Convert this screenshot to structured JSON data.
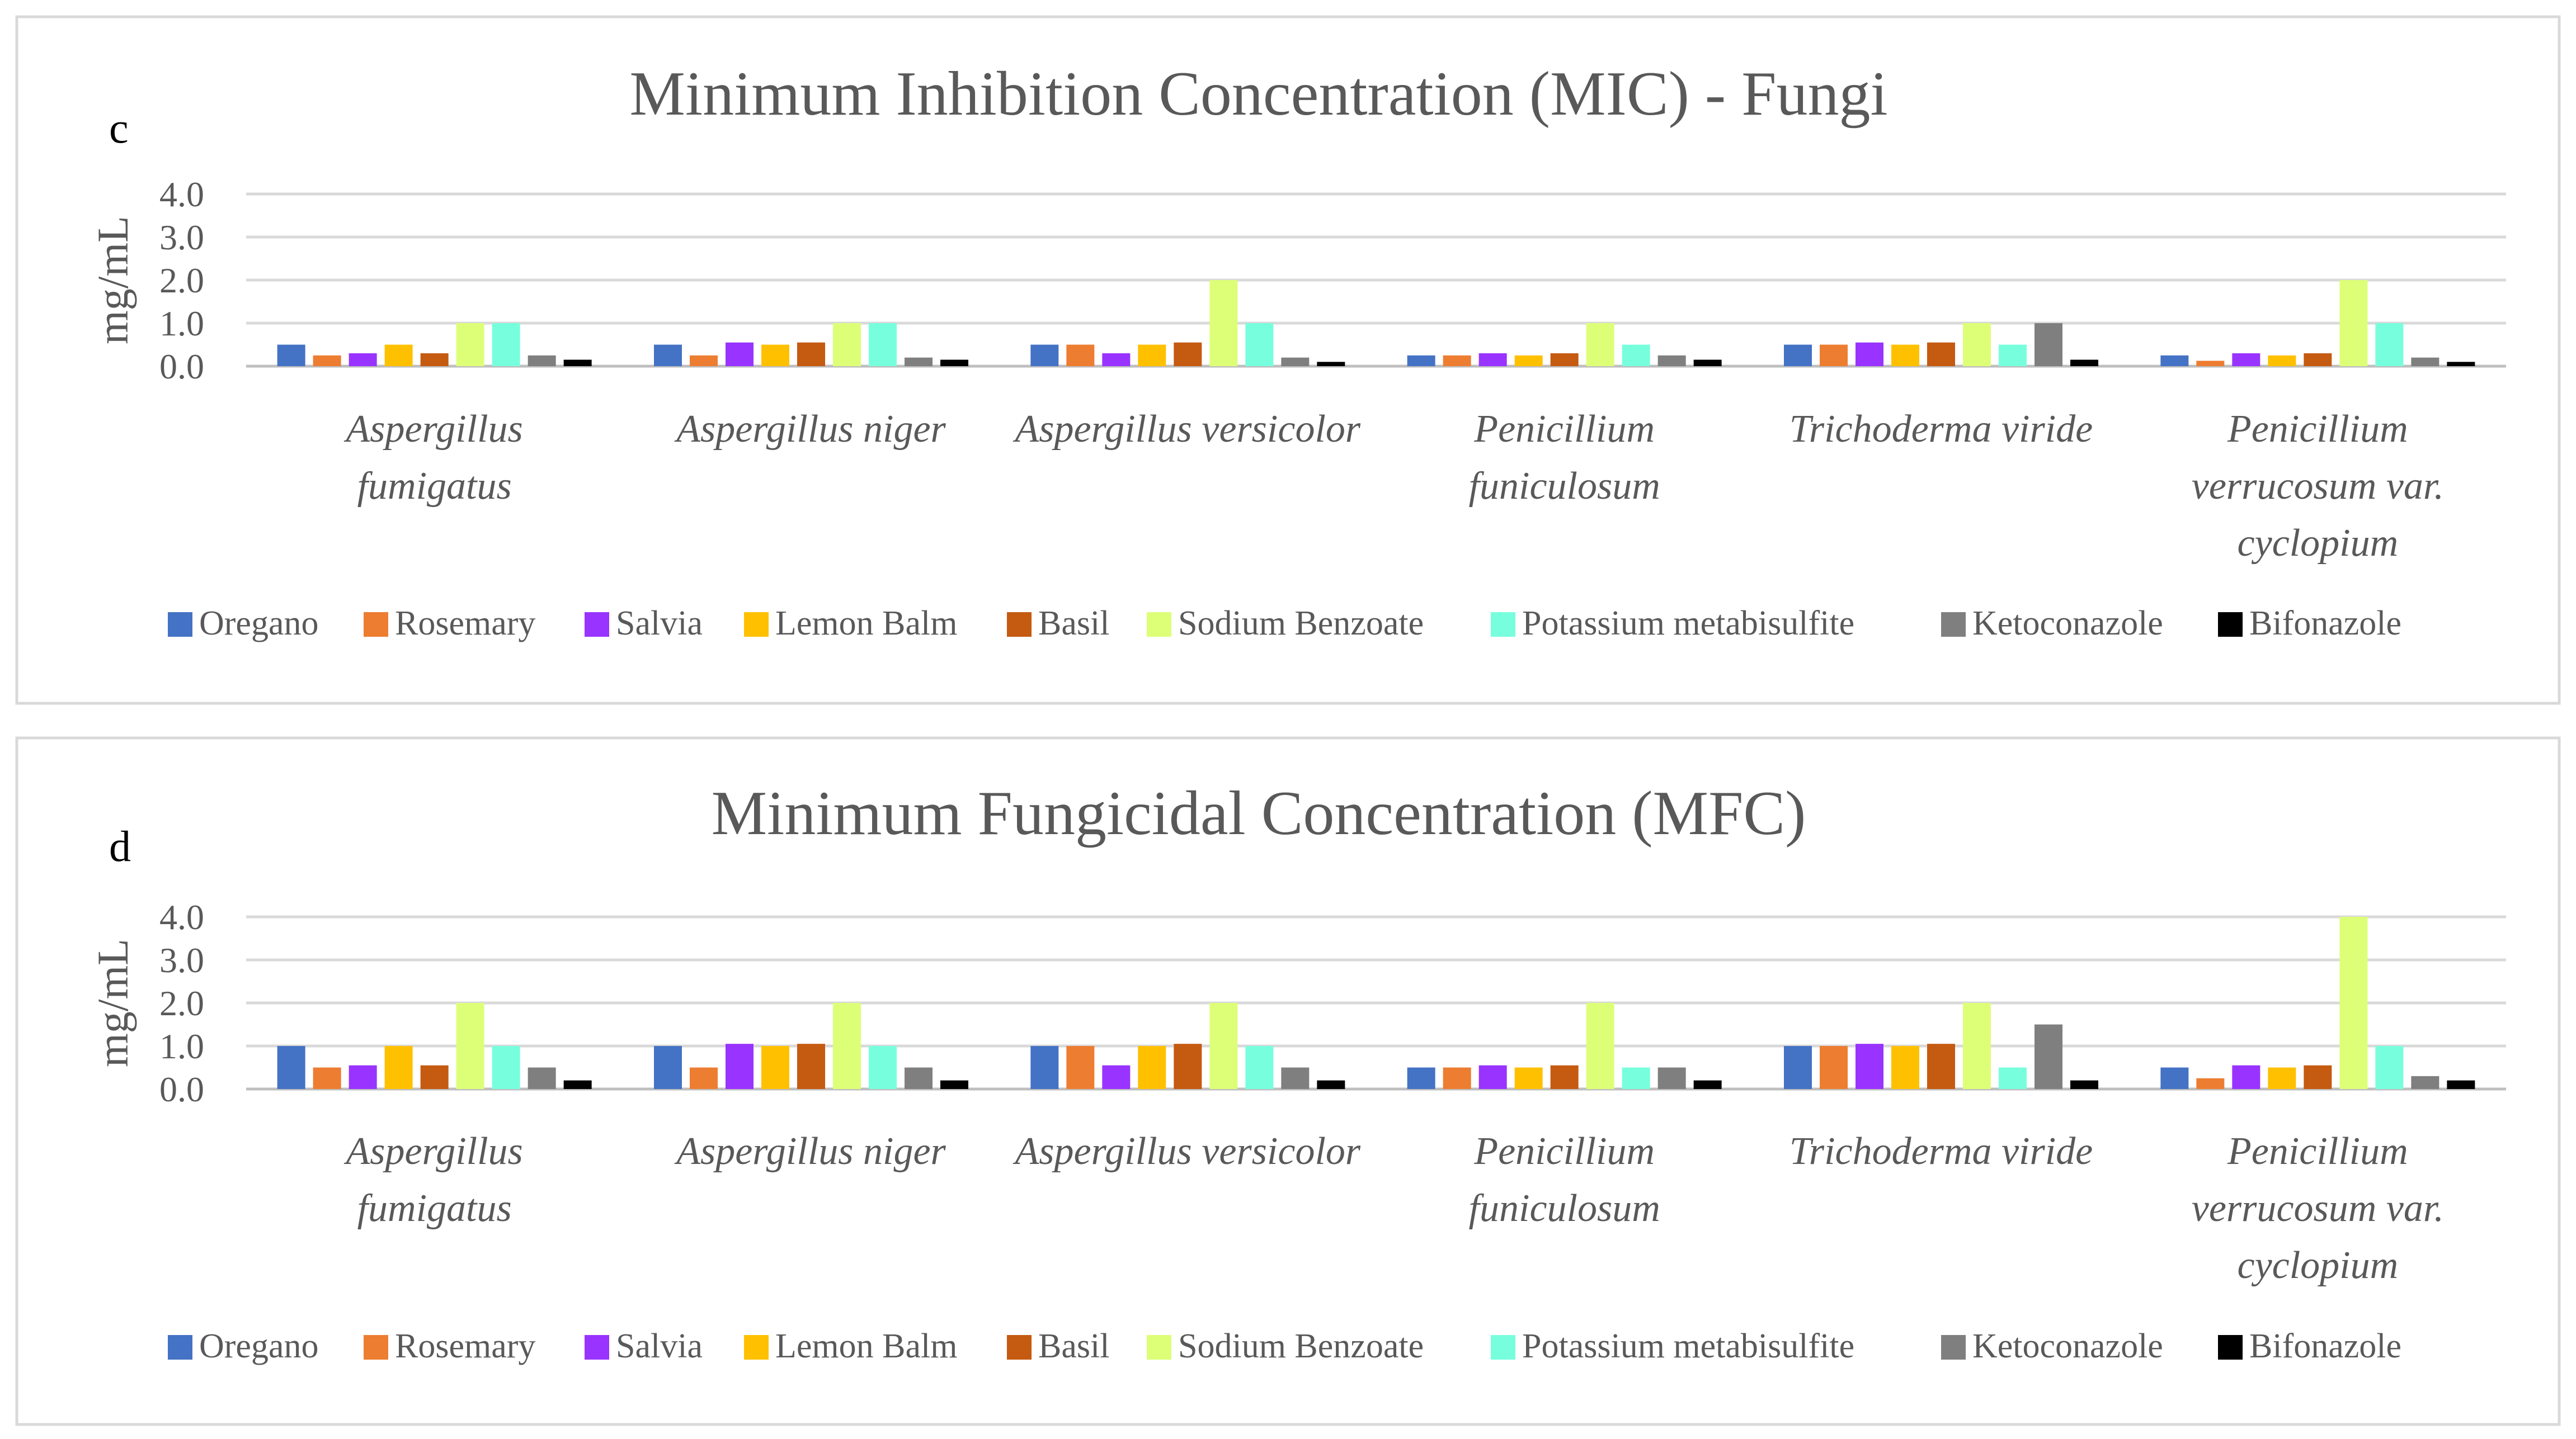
{
  "chart_data": [
    {
      "type": "bar",
      "panel": "c",
      "title": "Minimum Inhibition Concentration (MIC) - Fungi",
      "xlabel": "",
      "ylabel": "mg/mL",
      "ylim": [
        0,
        4
      ],
      "yticks": [
        "0.0",
        "1.0",
        "2.0",
        "3.0",
        "4.0"
      ],
      "grid": true,
      "legend_position": "bottom",
      "categories": [
        [
          "Aspergillus",
          "fumigatus"
        ],
        [
          "Aspergillus niger"
        ],
        [
          "Aspergillus versicolor"
        ],
        [
          "Penicillium",
          "funiculosum"
        ],
        [
          "Trichoderma viride"
        ],
        [
          "Penicillium",
          "verrucosum var.",
          "cyclopium"
        ]
      ],
      "series": [
        {
          "name": "Oregano",
          "color": "#4472C4",
          "values": [
            0.5,
            0.5,
            0.5,
            0.25,
            0.5,
            0.25
          ]
        },
        {
          "name": "Rosemary",
          "color": "#ED7D31",
          "values": [
            0.25,
            0.25,
            0.5,
            0.25,
            0.5,
            0.125
          ]
        },
        {
          "name": "Salvia",
          "color": "#9933FF",
          "values": [
            0.3,
            0.55,
            0.3,
            0.3,
            0.55,
            0.3
          ]
        },
        {
          "name": "Lemon Balm",
          "color": "#FFC000",
          "values": [
            0.5,
            0.5,
            0.5,
            0.25,
            0.5,
            0.25
          ]
        },
        {
          "name": "Basil",
          "color": "#C55A11",
          "values": [
            0.3,
            0.55,
            0.55,
            0.3,
            0.55,
            0.3
          ]
        },
        {
          "name": "Sodium Benzoate",
          "color": "#DDFF77",
          "values": [
            1.0,
            1.0,
            2.0,
            1.0,
            1.0,
            2.0
          ]
        },
        {
          "name": "Potassium metabisulfite",
          "color": "#77FFDD",
          "values": [
            1.0,
            1.0,
            1.0,
            0.5,
            0.5,
            1.0
          ]
        },
        {
          "name": "Ketoconazole",
          "color": "#7F7F7F",
          "values": [
            0.25,
            0.2,
            0.2,
            0.25,
            1.0,
            0.2
          ]
        },
        {
          "name": "Bifonazole",
          "color": "#000000",
          "values": [
            0.15,
            0.15,
            0.1,
            0.15,
            0.15,
            0.1
          ]
        }
      ]
    },
    {
      "type": "bar",
      "panel": "d",
      "title": "Minimum Fungicidal Concentration (MFC)",
      "xlabel": "",
      "ylabel": "mg/mL",
      "ylim": [
        0,
        4
      ],
      "yticks": [
        "0.0",
        "1.0",
        "2.0",
        "3.0",
        "4.0"
      ],
      "grid": true,
      "legend_position": "bottom",
      "categories": [
        [
          "Aspergillus",
          "fumigatus"
        ],
        [
          "Aspergillus niger"
        ],
        [
          "Aspergillus versicolor"
        ],
        [
          "Penicillium",
          "funiculosum"
        ],
        [
          "Trichoderma viride"
        ],
        [
          "Penicillium",
          "verrucosum var.",
          "cyclopium"
        ]
      ],
      "series": [
        {
          "name": "Oregano",
          "color": "#4472C4",
          "values": [
            1.0,
            1.0,
            1.0,
            0.5,
            1.0,
            0.5
          ]
        },
        {
          "name": "Rosemary",
          "color": "#ED7D31",
          "values": [
            0.5,
            0.5,
            1.0,
            0.5,
            1.0,
            0.25
          ]
        },
        {
          "name": "Salvia",
          "color": "#9933FF",
          "values": [
            0.55,
            1.05,
            0.55,
            0.55,
            1.05,
            0.55
          ]
        },
        {
          "name": "Lemon Balm",
          "color": "#FFC000",
          "values": [
            1.0,
            1.0,
            1.0,
            0.5,
            1.0,
            0.5
          ]
        },
        {
          "name": "Basil",
          "color": "#C55A11",
          "values": [
            0.55,
            1.05,
            1.05,
            0.55,
            1.05,
            0.55
          ]
        },
        {
          "name": "Sodium Benzoate",
          "color": "#DDFF77",
          "values": [
            2.0,
            2.0,
            2.0,
            2.0,
            2.0,
            4.0
          ]
        },
        {
          "name": "Potassium metabisulfite",
          "color": "#77FFDD",
          "values": [
            1.0,
            1.0,
            1.0,
            0.5,
            0.5,
            1.0
          ]
        },
        {
          "name": "Ketoconazole",
          "color": "#7F7F7F",
          "values": [
            0.5,
            0.5,
            0.5,
            0.5,
            1.5,
            0.3
          ]
        },
        {
          "name": "Bifonazole",
          "color": "#000000",
          "values": [
            0.2,
            0.2,
            0.2,
            0.2,
            0.2,
            0.2
          ]
        }
      ]
    }
  ]
}
